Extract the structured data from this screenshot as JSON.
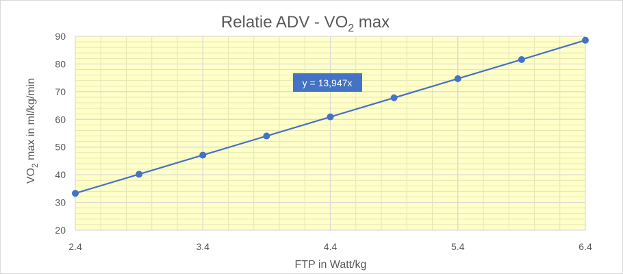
{
  "chart_data": {
    "type": "scatter",
    "title": {
      "prefix": "Relatie ADV - VO",
      "subscript": "2",
      "suffix": " max"
    },
    "xlabel": "FTP in Watt/kg",
    "ylabel": {
      "prefix": "VO",
      "subscript": "2",
      "suffix": " max in ml/kg/min"
    },
    "xlim": [
      2.4,
      6.4
    ],
    "ylim": [
      20,
      90
    ],
    "xticks": [
      2.4,
      3.4,
      4.4,
      5.4,
      6.4
    ],
    "xtick_labels": [
      "2.4",
      "3.4",
      "4.4",
      "5.4",
      "6.4"
    ],
    "yticks": [
      20,
      30,
      40,
      50,
      60,
      70,
      80,
      90
    ],
    "series": [
      {
        "x": [
          2.4,
          2.9,
          3.4,
          3.9,
          4.4,
          4.9,
          5.4,
          5.9,
          6.4
        ],
        "y": [
          33.3,
          40.2,
          47.1,
          54.0,
          60.9,
          67.8,
          74.7,
          81.6,
          88.6
        ],
        "color": "#4472C4"
      }
    ],
    "trendline": {
      "label": "y = 13,947x",
      "slope": 13.947,
      "color": "#4472C4"
    },
    "plot_background": "#FFFFC8",
    "grid": true
  }
}
